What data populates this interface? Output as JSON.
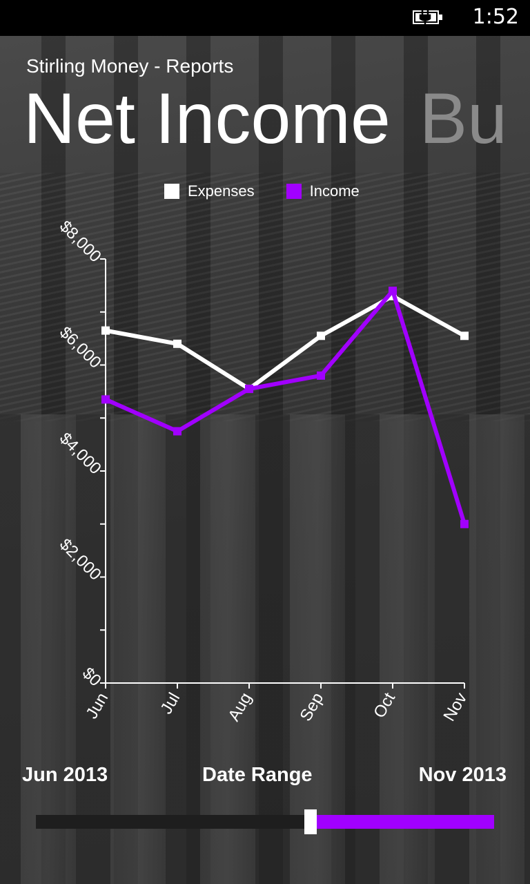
{
  "status_bar": {
    "time": "1:52",
    "battery_icon": "charging-battery-icon"
  },
  "app": {
    "title": "Stirling Money - Reports"
  },
  "pivot": {
    "active": "Net Income",
    "next_peek": "Bu"
  },
  "colors": {
    "income": "#a100ff",
    "expenses": "#ffffff",
    "accent": "#a100ff"
  },
  "chart_data": {
    "type": "line",
    "categories": [
      "Jun",
      "Jul",
      "Aug",
      "Sep",
      "Oct",
      "Nov"
    ],
    "series": [
      {
        "name": "Expenses",
        "color": "#ffffff",
        "values": [
          6650,
          6400,
          5550,
          6550,
          7300,
          6550
        ]
      },
      {
        "name": "Income",
        "color": "#a100ff",
        "values": [
          5350,
          4750,
          5550,
          5800,
          7400,
          3000
        ]
      }
    ],
    "yticks": [
      "$0",
      "$2,000",
      "$4,000",
      "$6,000",
      "$8,000"
    ],
    "ylim": [
      0,
      8000
    ],
    "legend_position": "top"
  },
  "date_range": {
    "label": "Date Range",
    "start": "Jun 2013",
    "end": "Nov 2013",
    "selected_fraction_start": 0.6
  }
}
